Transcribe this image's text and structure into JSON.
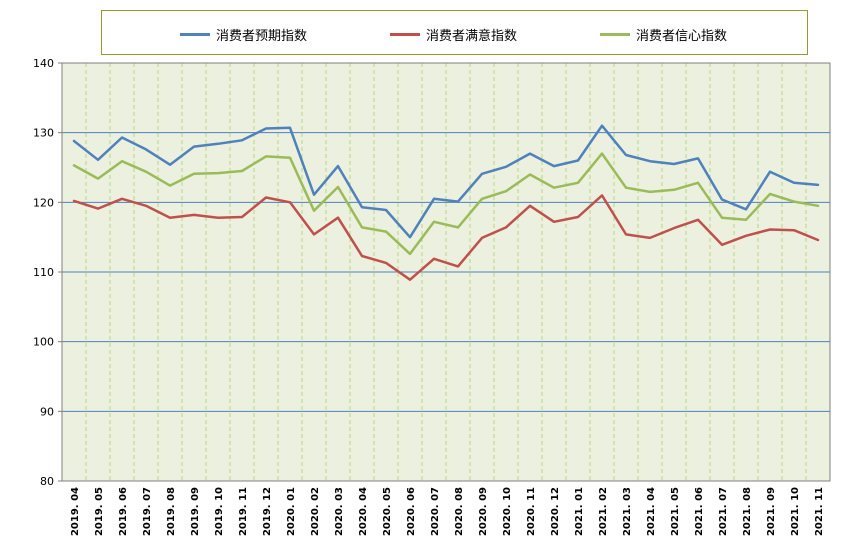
{
  "chart_data": {
    "type": "line",
    "title": "",
    "xlabel": "",
    "ylabel": "",
    "ylim": [
      80,
      140
    ],
    "yticks": [
      80,
      90,
      100,
      110,
      120,
      130,
      140
    ],
    "grid": true,
    "legend_position": "top",
    "categories": [
      "2019.04",
      "2019.05",
      "2019.06",
      "2019.07",
      "2019.08",
      "2019.09",
      "2019.10",
      "2019.11",
      "2019.12",
      "2020.01",
      "2020.02",
      "2020.03",
      "2020.04",
      "2020.05",
      "2020.06",
      "2020.07",
      "2020.08",
      "2020.09",
      "2020.10",
      "2020.11",
      "2020.12",
      "2021.01",
      "2021.02",
      "2021.03",
      "2021.04",
      "2021.05",
      "2021.06",
      "2021.07",
      "2021.08",
      "2021.09",
      "2021.10",
      "2021.11"
    ],
    "category_labels": [
      "2019. 04",
      "2019. 05",
      "2019. 06",
      "2019. 07",
      "2019. 08",
      "2019. 09",
      "2019. 10",
      "2019. 11",
      "2019. 12",
      "2020. 01",
      "2020. 02",
      "2020. 03",
      "2020. 04",
      "2020. 05",
      "2020. 06",
      "2020. 07",
      "2020. 08",
      "2020. 09",
      "2020. 10",
      "2020. 11",
      "2020. 12",
      "2021. 01",
      "2021. 02",
      "2021. 03",
      "2021. 04",
      "2021. 05",
      "2021. 06",
      "2021. 07",
      "2021. 08",
      "2021. 09",
      "2021. 10",
      "2021. 11"
    ],
    "series": [
      {
        "name": "消费者预期指数",
        "color": "#4f81bd",
        "values": [
          128.8,
          126.1,
          129.3,
          127.6,
          125.4,
          128.0,
          128.4,
          128.9,
          130.6,
          130.7,
          121.1,
          125.2,
          119.3,
          118.9,
          115.0,
          120.5,
          120.1,
          124.1,
          125.1,
          127.0,
          125.2,
          126.0,
          131.0,
          126.8,
          125.9,
          125.5,
          126.3,
          120.4,
          119.0,
          124.4,
          122.8,
          122.5
        ]
      },
      {
        "name": "消费者满意指数",
        "color": "#c0504d",
        "values": [
          120.2,
          119.1,
          120.5,
          119.5,
          117.8,
          118.2,
          117.8,
          117.9,
          120.7,
          120.0,
          115.4,
          117.8,
          112.3,
          111.3,
          108.9,
          111.9,
          110.8,
          114.9,
          116.4,
          119.5,
          117.2,
          117.9,
          121.0,
          115.4,
          114.9,
          116.3,
          117.5,
          113.9,
          115.2,
          116.1,
          116.0,
          114.6
        ]
      },
      {
        "name": "消费者信心指数",
        "color": "#9bbb59",
        "values": [
          125.3,
          123.4,
          125.9,
          124.4,
          122.4,
          124.1,
          124.2,
          124.5,
          126.6,
          126.4,
          118.8,
          122.2,
          116.4,
          115.8,
          112.6,
          117.2,
          116.4,
          120.5,
          121.6,
          124.0,
          122.1,
          122.8,
          127.0,
          122.1,
          121.5,
          121.8,
          122.8,
          117.8,
          117.5,
          121.2,
          120.1,
          119.5
        ]
      }
    ]
  }
}
